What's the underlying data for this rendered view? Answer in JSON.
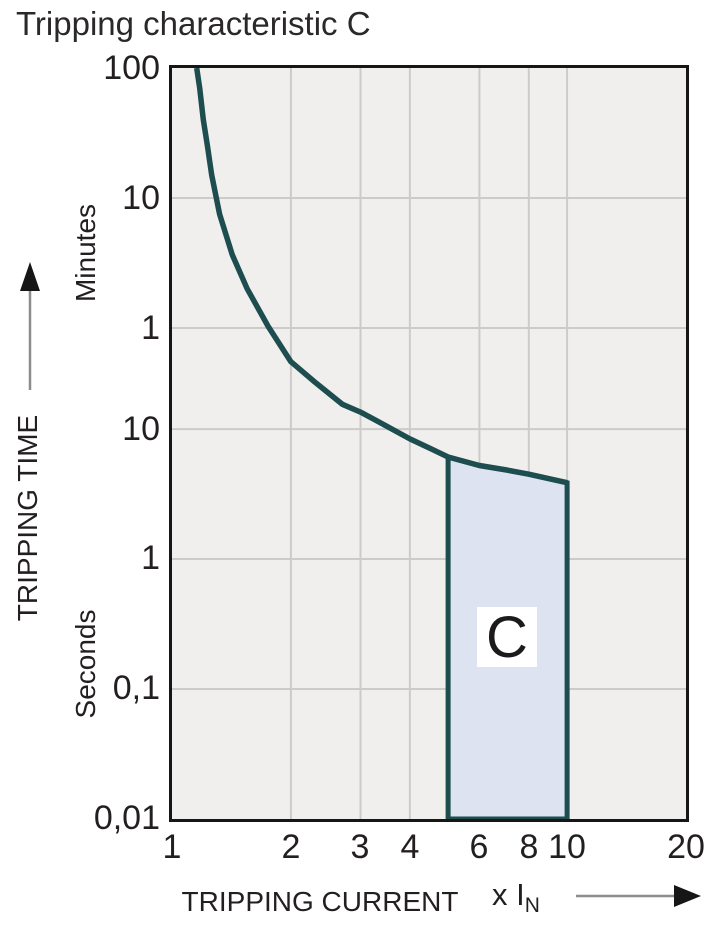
{
  "title": "Tripping characteristic C",
  "colors": {
    "curve": "#1d4d4f",
    "region_fill": "#dde3f1",
    "plot_background": "#f0efee",
    "grid": "#cccbca",
    "plot_border": "#161616",
    "text": "#231f20",
    "arrow_line": "#8c8c8c",
    "arrow_head": "#161616",
    "region_label_background": "#ffffff"
  },
  "chart_data": {
    "type": "line",
    "title": "Tripping characteristic C",
    "grid": true,
    "x_axis": {
      "label": "TRIPPING CURRENT",
      "multiplier_label": "x I",
      "multiplier_subscript": "N",
      "scale": "log",
      "min": 1,
      "max": 20,
      "ticks": [
        {
          "label": "1",
          "value": 1
        },
        {
          "label": "2",
          "value": 2
        },
        {
          "label": "3",
          "value": 3
        },
        {
          "label": "4",
          "value": 4
        },
        {
          "label": "6",
          "value": 6
        },
        {
          "label": "8",
          "value": 8
        },
        {
          "label": "10",
          "value": 10
        },
        {
          "label": "20",
          "value": 20
        }
      ],
      "gridline_values": [
        2,
        3,
        4,
        6,
        8,
        10
      ]
    },
    "y_axis": {
      "label": "TRIPPING TIME",
      "scale": "log",
      "min_seconds": 0.01,
      "max_seconds": 6000,
      "unit_groups": [
        {
          "label": "Minutes"
        },
        {
          "label": "Seconds"
        }
      ],
      "ticks": [
        {
          "label": "100",
          "seconds": 6000,
          "unit": "minutes"
        },
        {
          "label": "10",
          "seconds": 600,
          "unit": "minutes"
        },
        {
          "label": "1",
          "seconds": 60,
          "unit": "minutes"
        },
        {
          "label": "10",
          "seconds": 10,
          "unit": "seconds"
        },
        {
          "label": "1",
          "seconds": 1,
          "unit": "seconds"
        },
        {
          "label": "0,1",
          "seconds": 0.1,
          "unit": "seconds"
        },
        {
          "label": "0,01",
          "seconds": 0.01,
          "unit": "seconds"
        }
      ],
      "gridline_seconds": [
        600,
        60,
        10,
        1,
        0.1
      ]
    },
    "series": [
      {
        "name": "C tripping characteristic curve",
        "points": [
          [
            1.155,
            6000
          ],
          [
            1.175,
            4200
          ],
          [
            1.2,
            2400
          ],
          [
            1.23,
            1500
          ],
          [
            1.26,
            900
          ],
          [
            1.32,
            450
          ],
          [
            1.42,
            220
          ],
          [
            1.55,
            120
          ],
          [
            1.75,
            62
          ],
          [
            2.0,
            33
          ],
          [
            2.3,
            23
          ],
          [
            2.7,
            15.5
          ],
          [
            3.0,
            13.5
          ],
          [
            3.5,
            10.5
          ],
          [
            4.0,
            8.4
          ],
          [
            4.5,
            7.1
          ],
          [
            5.0,
            6.1
          ],
          [
            6.0,
            5.25
          ],
          [
            7.0,
            4.85
          ],
          [
            8.0,
            4.5
          ],
          [
            9.0,
            4.15
          ],
          [
            10.0,
            3.87
          ]
        ]
      }
    ],
    "region": {
      "label": "C",
      "x_min": 5,
      "x_max": 10,
      "bottom_seconds": 0.01,
      "top_follows_curve": true
    }
  }
}
